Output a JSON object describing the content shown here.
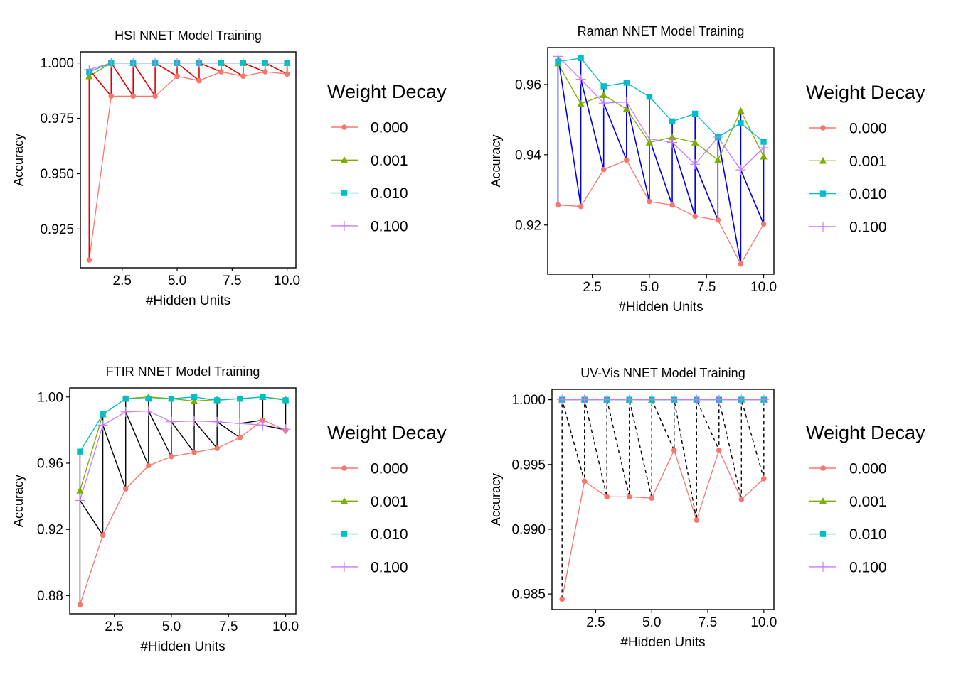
{
  "figure_background": "#ffffff",
  "chart_data": [
    {
      "type": "line",
      "title": "HSI NNET Model Training",
      "xlabel": "#Hidden Units",
      "ylabel": "Accuracy",
      "xlim": [
        0.6,
        10.4
      ],
      "ylim": [
        0.9075,
        1.005
      ],
      "xticks": [
        2.5,
        5.0,
        7.5,
        10.0
      ],
      "xtick_labels": [
        "2.5",
        "5.0",
        "7.5",
        "10.0"
      ],
      "yticks": [
        0.925,
        0.95,
        0.975,
        1.0
      ],
      "ytick_labels": [
        "0.925",
        "0.950",
        "0.975",
        "1.000"
      ],
      "x": [
        1,
        2,
        3,
        4,
        5,
        6,
        7,
        8,
        9,
        10
      ],
      "series": [
        {
          "name": "0.000",
          "color": "#F8766D",
          "marker": "circle",
          "values": [
            0.911,
            0.985,
            0.985,
            0.985,
            0.994,
            0.992,
            0.996,
            0.994,
            0.996,
            0.995
          ]
        },
        {
          "name": "0.001",
          "color": "#7CAE00",
          "marker": "triangle",
          "values": [
            0.994,
            1.0,
            1.0,
            1.0,
            1.0,
            1.0,
            1.0,
            1.0,
            1.0,
            1.0
          ]
        },
        {
          "name": "0.010",
          "color": "#00BFC4",
          "marker": "square",
          "values": [
            0.996,
            1.0,
            1.0,
            1.0,
            1.0,
            1.0,
            1.0,
            1.0,
            1.0,
            1.0
          ]
        },
        {
          "name": "0.100",
          "color": "#C77CFF",
          "marker": "plus",
          "values": [
            0.997,
            1.0,
            1.0,
            1.0,
            1.0,
            1.0,
            1.0,
            1.0,
            1.0,
            1.0
          ]
        }
      ],
      "path_overlay": {
        "color": "#E00000",
        "dash": "solid",
        "width": 1.6
      },
      "legend": {
        "title": "Weight Decay",
        "position": "right"
      }
    },
    {
      "type": "line",
      "title": "Raman NNET Model Training",
      "xlabel": "#Hidden Units",
      "ylabel": "Accuracy",
      "xlim": [
        0.55,
        10.45
      ],
      "ylim": [
        0.906,
        0.9705
      ],
      "xticks": [
        2.5,
        5.0,
        7.5,
        10.0
      ],
      "xtick_labels": [
        "2.5",
        "5.0",
        "7.5",
        "10.0"
      ],
      "yticks": [
        0.92,
        0.94,
        0.96
      ],
      "ytick_labels": [
        "0.92",
        "0.94",
        "0.96"
      ],
      "x": [
        1,
        2,
        3,
        4,
        5,
        6,
        7,
        8,
        9,
        10
      ],
      "series": [
        {
          "name": "0.000",
          "color": "#F8766D",
          "marker": "circle",
          "values": [
            0.9257,
            0.9253,
            0.9358,
            0.9385,
            0.9267,
            0.9257,
            0.9225,
            0.9214,
            0.9089,
            0.9203
          ]
        },
        {
          "name": "0.001",
          "color": "#7CAE00",
          "marker": "triangle",
          "values": [
            0.966,
            0.9545,
            0.957,
            0.953,
            0.9435,
            0.945,
            0.9435,
            0.9385,
            0.9525,
            0.9395
          ]
        },
        {
          "name": "0.010",
          "color": "#00BFC4",
          "marker": "square",
          "values": [
            0.9665,
            0.9675,
            0.9595,
            0.9605,
            0.9565,
            0.9495,
            0.9517,
            0.945,
            0.949,
            0.9437
          ]
        },
        {
          "name": "0.100",
          "color": "#C77CFF",
          "marker": "plus",
          "values": [
            0.968,
            0.9615,
            0.9547,
            0.955,
            0.9445,
            0.9435,
            0.9373,
            0.945,
            0.9357,
            0.942
          ]
        }
      ],
      "path_overlay": {
        "color": "#0000E0",
        "dash": "solid",
        "width": 1.6
      },
      "legend": {
        "title": "Weight Decay",
        "position": "right"
      }
    },
    {
      "type": "line",
      "title": "FTIR NNET Model Training",
      "xlabel": "#Hidden Units",
      "ylabel": "Accuracy",
      "xlim": [
        0.55,
        10.45
      ],
      "ylim": [
        0.869,
        1.0055
      ],
      "xticks": [
        2.5,
        5.0,
        7.5,
        10.0
      ],
      "xtick_labels": [
        "2.5",
        "5.0",
        "7.5",
        "10.0"
      ],
      "yticks": [
        0.88,
        0.92,
        0.96,
        1.0
      ],
      "ytick_labels": [
        "0.88",
        "0.92",
        "0.96",
        "1.00"
      ],
      "x": [
        1,
        2,
        3,
        4,
        5,
        6,
        7,
        8,
        9,
        10
      ],
      "series": [
        {
          "name": "0.000",
          "color": "#F8766D",
          "marker": "circle",
          "values": [
            0.8745,
            0.9165,
            0.9445,
            0.9585,
            0.964,
            0.9665,
            0.969,
            0.9755,
            0.986,
            0.98
          ]
        },
        {
          "name": "0.001",
          "color": "#7CAE00",
          "marker": "triangle",
          "values": [
            0.9435,
            0.9895,
            0.999,
            1.0,
            0.999,
            0.9975,
            0.9985,
            0.999,
            1.0,
            0.9985
          ]
        },
        {
          "name": "0.010",
          "color": "#00BFC4",
          "marker": "square",
          "values": [
            0.967,
            0.9895,
            0.999,
            0.999,
            0.999,
            1.0,
            0.998,
            0.999,
            1.0,
            0.998
          ]
        },
        {
          "name": "0.100",
          "color": "#C77CFF",
          "marker": "plus",
          "values": [
            0.9375,
            0.983,
            0.991,
            0.9915,
            0.985,
            0.9855,
            0.985,
            0.984,
            0.983,
            0.9805
          ]
        }
      ],
      "path_overlay": {
        "color": "#000000",
        "dash": "solid",
        "width": 1.4
      },
      "legend": {
        "title": "Weight Decay",
        "position": "right"
      }
    },
    {
      "type": "line",
      "title": "UV-Vis NNET Model Training",
      "xlabel": "#Hidden Units",
      "ylabel": "Accuracy",
      "xlim": [
        0.55,
        10.45
      ],
      "ylim": [
        0.9838,
        1.0008
      ],
      "xticks": [
        2.5,
        5.0,
        7.5,
        10.0
      ],
      "xtick_labels": [
        "2.5",
        "5.0",
        "7.5",
        "10.0"
      ],
      "yticks": [
        0.985,
        0.99,
        0.995,
        1.0
      ],
      "ytick_labels": [
        "0.985",
        "0.990",
        "0.995",
        "1.000"
      ],
      "x": [
        1,
        2,
        3,
        4,
        5,
        6,
        7,
        8,
        9,
        10
      ],
      "series": [
        {
          "name": "0.000",
          "color": "#F8766D",
          "marker": "circle",
          "values": [
            0.9846,
            0.9937,
            0.9925,
            0.9925,
            0.9924,
            0.9961,
            0.9907,
            0.9961,
            0.9923,
            0.9939
          ]
        },
        {
          "name": "0.001",
          "color": "#7CAE00",
          "marker": "triangle",
          "values": [
            1.0,
            1.0,
            1.0,
            1.0,
            1.0,
            1.0,
            1.0,
            1.0,
            1.0,
            1.0
          ]
        },
        {
          "name": "0.010",
          "color": "#00BFC4",
          "marker": "square",
          "values": [
            1.0,
            1.0,
            1.0,
            1.0,
            1.0,
            1.0,
            1.0,
            1.0,
            1.0,
            1.0
          ]
        },
        {
          "name": "0.100",
          "color": "#C77CFF",
          "marker": "plus",
          "values": [
            1.0,
            1.0,
            1.0,
            1.0,
            1.0,
            1.0,
            1.0,
            1.0,
            1.0,
            1.0
          ]
        }
      ],
      "path_overlay": {
        "color": "#000000",
        "dash": "dashed",
        "width": 1.4
      },
      "legend": {
        "title": "Weight Decay",
        "position": "right"
      }
    }
  ]
}
